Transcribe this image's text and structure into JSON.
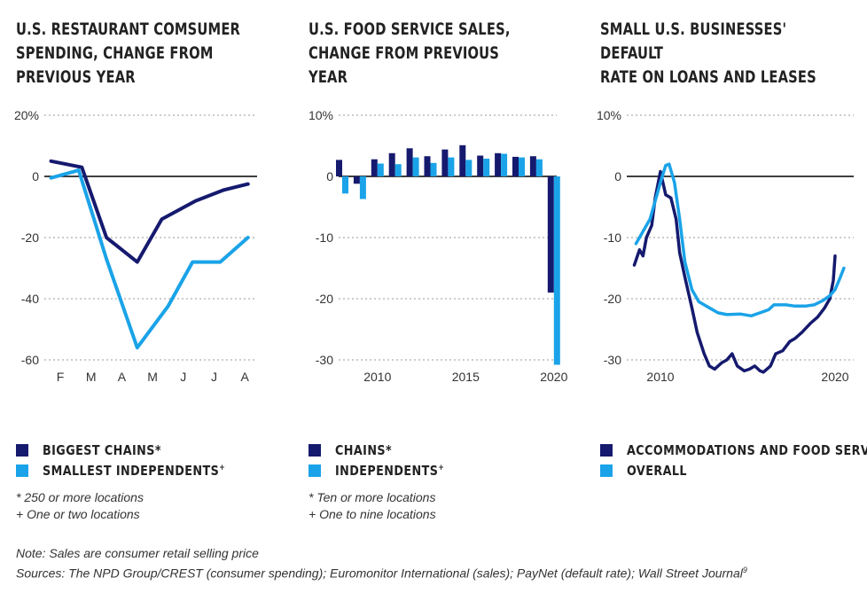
{
  "colors": {
    "navy": "#151a6e",
    "sky": "#1aa3e8",
    "grid": "#9a9a9a",
    "zero": "#000000"
  },
  "chart_data": [
    {
      "type": "line",
      "title": "U.S. RESTAURANT COMSUMER\nSPENDING, CHANGE FROM\nPREVIOUS YEAR",
      "categories": [
        "F",
        "M",
        "A",
        "M",
        "J",
        "J",
        "A"
      ],
      "x_positions": [
        1,
        2,
        3,
        4,
        5,
        6,
        7
      ],
      "yticks": [
        "20%",
        "0",
        "-20",
        "-40",
        "-60"
      ],
      "ylim": [
        -60,
        20
      ],
      "grid": true,
      "series": [
        {
          "name": "BIGGEST CHAINS*",
          "color": "#151a6e",
          "points": [
            [
              0.7,
              5
            ],
            [
              1.7,
              3
            ],
            [
              2.5,
              -20
            ],
            [
              3.5,
              -28
            ],
            [
              4.3,
              -14
            ],
            [
              5.4,
              -8
            ],
            [
              6.3,
              -4.5
            ],
            [
              7.1,
              -2.5
            ]
          ]
        },
        {
          "name": "SMALLEST INDEPENDENTS+",
          "color": "#1aa3e8",
          "points": [
            [
              0.7,
              -0.5
            ],
            [
              1.6,
              2
            ],
            [
              2.5,
              -27
            ],
            [
              3.5,
              -56
            ],
            [
              4.5,
              -42.5
            ],
            [
              5.3,
              -28
            ],
            [
              6.2,
              -28
            ],
            [
              7.1,
              -20
            ]
          ]
        }
      ],
      "legend": [
        {
          "label": "BIGGEST CHAINS*",
          "color": "#151a6e"
        },
        {
          "label": "SMALLEST INDEPENDENTS",
          "sup": "+",
          "color": "#1aa3e8"
        }
      ],
      "footnotes": [
        "* 250 or more locations",
        "+ One or two locations"
      ]
    },
    {
      "type": "bar",
      "title": "U.S. FOOD SERVICE SALES,\nCHANGE FROM PREVIOUS YEAR",
      "categories": [
        2008,
        2009,
        2010,
        2011,
        2012,
        2013,
        2014,
        2015,
        2016,
        2017,
        2018,
        2019,
        2020
      ],
      "xticks": [
        "2010",
        "2015",
        "2020"
      ],
      "yticks": [
        "10%",
        "0",
        "-10",
        "-20",
        "-30"
      ],
      "ylim": [
        -30,
        10
      ],
      "grid": true,
      "series": [
        {
          "name": "CHAINS*",
          "color": "#151a6e",
          "values": [
            2.7,
            -1.2,
            2.8,
            3.8,
            4.6,
            3.3,
            4.4,
            5.1,
            3.4,
            3.8,
            3.2,
            3.3,
            -19
          ]
        },
        {
          "name": "INDEPENDENTS+",
          "color": "#1aa3e8",
          "values": [
            -2.8,
            -3.7,
            2.1,
            2.0,
            3.1,
            2.2,
            3.1,
            2.7,
            2.9,
            3.7,
            3.1,
            2.8,
            -30.8
          ]
        }
      ],
      "legend": [
        {
          "label": "CHAINS*",
          "color": "#151a6e"
        },
        {
          "label": "INDEPENDENTS",
          "sup": "+",
          "color": "#1aa3e8"
        }
      ],
      "footnotes": [
        "* Ten or more locations",
        "+ One to nine locations"
      ]
    },
    {
      "type": "line",
      "title": "SMALL U.S. BUSINESSES' DEFAULT\nRATE ON LOANS AND LEASES",
      "xticks": [
        "2010",
        "2020"
      ],
      "xtick_values": [
        2010,
        2020
      ],
      "xlim": [
        2007.9,
        2021.3
      ],
      "yticks": [
        "10%",
        "0",
        "-10",
        "-20",
        "-30"
      ],
      "ylim": [
        -30,
        10
      ],
      "grid": true,
      "series": [
        {
          "name": "ACCOMMODATIONS AND FOOD SERVICES",
          "color": "#151a6e",
          "points": [
            [
              2008.5,
              -14.5
            ],
            [
              2008.8,
              -12
            ],
            [
              2009.0,
              -13
            ],
            [
              2009.2,
              -10
            ],
            [
              2009.5,
              -8
            ],
            [
              2009.7,
              -3.5
            ],
            [
              2010.0,
              0.8
            ],
            [
              2010.3,
              -3
            ],
            [
              2010.6,
              -3.5
            ],
            [
              2010.9,
              -7
            ],
            [
              2011.1,
              -12.5
            ],
            [
              2011.4,
              -16.5
            ],
            [
              2011.8,
              -21.5
            ],
            [
              2012.1,
              -25.5
            ],
            [
              2012.5,
              -29
            ],
            [
              2012.8,
              -31
            ],
            [
              2013.1,
              -31.5
            ],
            [
              2013.5,
              -30.5
            ],
            [
              2013.8,
              -30
            ],
            [
              2014.1,
              -29
            ],
            [
              2014.4,
              -31
            ],
            [
              2014.8,
              -31.8
            ],
            [
              2015.1,
              -31.5
            ],
            [
              2015.4,
              -31
            ],
            [
              2015.7,
              -31.8
            ],
            [
              2015.9,
              -32
            ],
            [
              2016.3,
              -31
            ],
            [
              2016.6,
              -29
            ],
            [
              2017.0,
              -28.5
            ],
            [
              2017.4,
              -27
            ],
            [
              2017.7,
              -26.5
            ],
            [
              2018.1,
              -25.5
            ],
            [
              2018.6,
              -24
            ],
            [
              2019.0,
              -23
            ],
            [
              2019.4,
              -21.5
            ],
            [
              2019.7,
              -20
            ],
            [
              2019.9,
              -17
            ],
            [
              2020.0,
              -13
            ]
          ]
        },
        {
          "name": "OVERALL",
          "color": "#1aa3e8",
          "points": [
            [
              2008.6,
              -11
            ],
            [
              2009.0,
              -9
            ],
            [
              2009.4,
              -7
            ],
            [
              2009.7,
              -4
            ],
            [
              2010.0,
              -1
            ],
            [
              2010.3,
              1.8
            ],
            [
              2010.5,
              2
            ],
            [
              2010.8,
              -1
            ],
            [
              2011.1,
              -7
            ],
            [
              2011.4,
              -14
            ],
            [
              2011.8,
              -18.5
            ],
            [
              2012.2,
              -20.5
            ],
            [
              2012.8,
              -21.5
            ],
            [
              2013.3,
              -22.3
            ],
            [
              2013.8,
              -22.6
            ],
            [
              2014.6,
              -22.5
            ],
            [
              2015.2,
              -22.8
            ],
            [
              2015.7,
              -22.3
            ],
            [
              2016.2,
              -21.8
            ],
            [
              2016.5,
              -21
            ],
            [
              2017.2,
              -21
            ],
            [
              2017.7,
              -21.2
            ],
            [
              2018.3,
              -21.2
            ],
            [
              2018.8,
              -21
            ],
            [
              2019.3,
              -20.3
            ],
            [
              2019.7,
              -19.5
            ],
            [
              2020.0,
              -18.5
            ],
            [
              2020.3,
              -16.5
            ],
            [
              2020.5,
              -15
            ]
          ]
        }
      ],
      "legend": [
        {
          "label": "ACCOMMODATIONS AND FOOD SERVICES",
          "color": "#151a6e"
        },
        {
          "label": "OVERALL",
          "color": "#1aa3e8"
        }
      ],
      "footnotes": []
    }
  ],
  "notes": {
    "line1": "Note: Sales are consumer retail selling price",
    "line2": "Sources: The NPD Group/CREST (consumer spending); Euromonitor International (sales); PayNet (default rate); Wall Street Journal",
    "line2_sup": "9"
  }
}
